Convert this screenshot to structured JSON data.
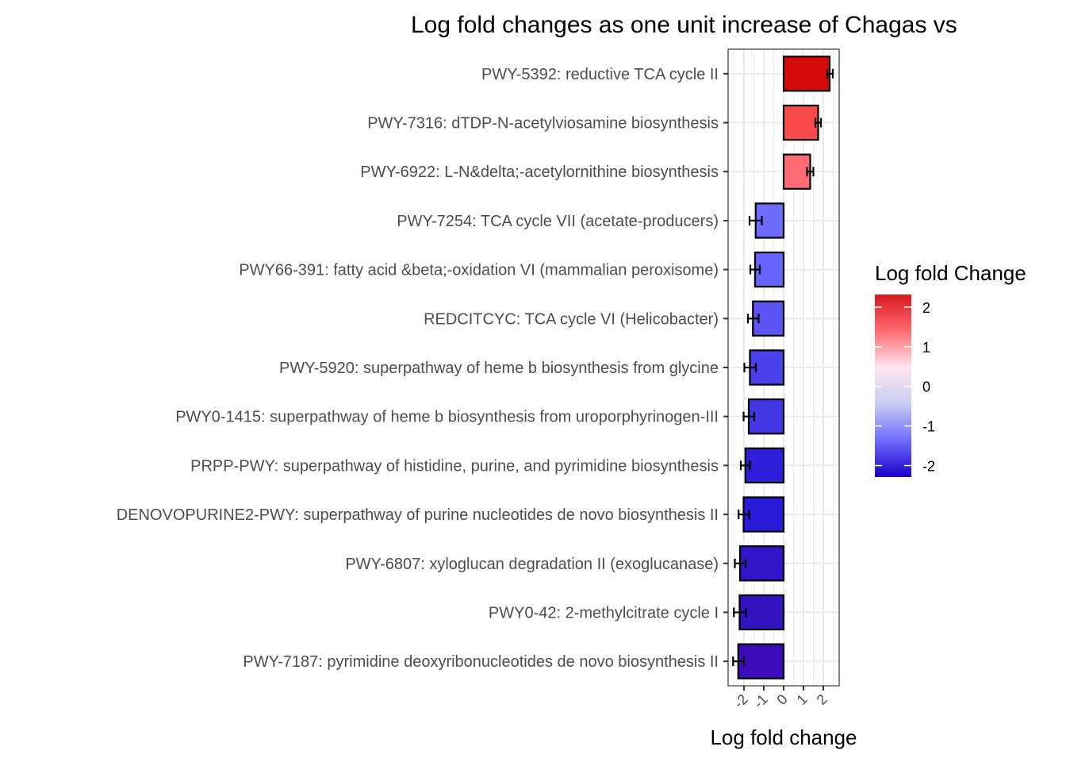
{
  "chart_data": {
    "type": "bar",
    "orientation": "horizontal",
    "title": "Log fold changes as one unit increase of Chagas vs",
    "xlabel": "Log fold change",
    "ylabel": "",
    "xlim": [
      -2.8,
      2.8
    ],
    "x_ticks": [
      "-2",
      "-1",
      "0",
      "1",
      "2"
    ],
    "x_tick_values": [
      -2,
      -1,
      0,
      1,
      2
    ],
    "grid": true,
    "categories": [
      "PWY-5392: reductive TCA cycle II",
      "PWY-7316: dTDP-N-acetylviosamine biosynthesis",
      "PWY-6922: L-N&delta;-acetylornithine biosynthesis",
      "PWY-7254: TCA cycle VII (acetate-producers)",
      "PWY66-391: fatty acid &beta;-oxidation VI (mammalian peroxisome)",
      "REDCITCYC: TCA cycle VI (Helicobacter)",
      "PWY-5920: superpathway of heme b biosynthesis from glycine",
      "PWY0-1415: superpathway of heme b biosynthesis from uroporphyrinogen-III",
      "PRPP-PWY: superpathway of histidine, purine, and pyrimidine biosynthesis",
      "DENOVOPURINE2-PWY: superpathway of purine nucleotides de novo biosynthesis II",
      "PWY-6807: xyloglucan degradation II (exoglucanase)",
      "PWY0-42: 2-methylcitrate cycle I",
      "PWY-7187: pyrimidine deoxyribonucleotides de novo biosynthesis II"
    ],
    "values": [
      2.32,
      1.74,
      1.34,
      -1.41,
      -1.44,
      -1.55,
      -1.7,
      -1.76,
      -1.93,
      -2.02,
      -2.2,
      -2.22,
      -2.29
    ],
    "error_low": [
      2.2,
      1.6,
      1.18,
      -1.72,
      -1.68,
      -1.8,
      -1.98,
      -2.02,
      -2.16,
      -2.27,
      -2.46,
      -2.51,
      -2.55
    ],
    "error_high": [
      2.48,
      1.88,
      1.5,
      -1.1,
      -1.2,
      -1.26,
      -1.4,
      -1.48,
      -1.7,
      -1.74,
      -1.92,
      -1.9,
      -2.0
    ],
    "fill_colors": [
      "#d70a0a",
      "#f94949",
      "#ff6b72",
      "#6e6cff",
      "#6764fd",
      "#5c55f4",
      "#4b41ea",
      "#4438e6",
      "#2e1fdc",
      "#2a1bd9",
      "#3115c8",
      "#3414c0",
      "#3c0cb8"
    ],
    "legend": {
      "title": "Log fold Change",
      "position": "right",
      "ticks": [
        "2",
        "1",
        "0",
        "-1",
        "-2"
      ],
      "tick_values": [
        2,
        1,
        0,
        -1,
        -2
      ],
      "range": [
        -2.29,
        2.32
      ],
      "gradient": [
        "#d7191c",
        "#ff6b72",
        "#ffe6f0",
        "#c8ccf2",
        "#6e6cff",
        "#1a00c8"
      ]
    }
  }
}
